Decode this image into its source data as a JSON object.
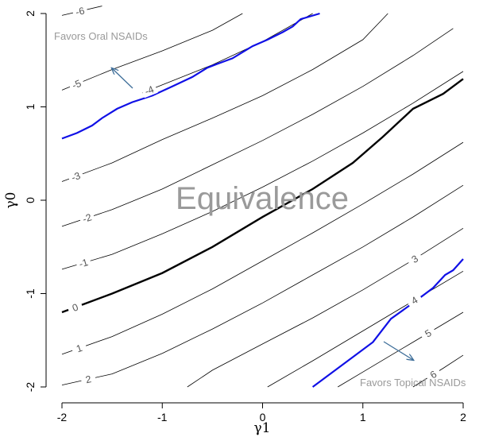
{
  "chart_data": {
    "type": "line",
    "xlabel": "γ1",
    "ylabel": "γ0",
    "xlim": [
      -2,
      2
    ],
    "ylim": [
      -2,
      2
    ],
    "x_ticks": [
      -2,
      -1,
      0,
      1,
      2
    ],
    "y_ticks": [
      -2,
      -1,
      0,
      1,
      2
    ],
    "x_tick_labels": [
      "-2",
      "-1",
      "0",
      "1",
      "2"
    ],
    "y_tick_labels": [
      "-2",
      "-1",
      "0",
      "1",
      "2"
    ],
    "grid": false,
    "annotations": {
      "center": "Equivalence",
      "top_left": "Favors Oral NSAIDs",
      "bottom_right": "Favors Topical NSAIDs"
    },
    "contours": [
      {
        "level": "-6",
        "points": [
          [
            -2,
            1.98
          ],
          [
            -1.6,
            2.08
          ]
        ]
      },
      {
        "level": "-5",
        "points": [
          [
            -2,
            1.18
          ],
          [
            -1.5,
            1.4
          ],
          [
            -1.0,
            1.6
          ],
          [
            -0.5,
            1.82
          ],
          [
            -0.2,
            2.0
          ]
        ]
      },
      {
        "level": "-4",
        "points": [
          [
            -1.2,
            1.15
          ],
          [
            -0.5,
            1.45
          ],
          [
            0.0,
            1.7
          ],
          [
            0.5,
            2.0
          ]
        ]
      },
      {
        "level": "-3",
        "points": [
          [
            -2,
            0.2
          ],
          [
            -1.5,
            0.4
          ],
          [
            -1.0,
            0.65
          ],
          [
            -0.5,
            0.88
          ],
          [
            0.0,
            1.12
          ],
          [
            0.5,
            1.4
          ],
          [
            1.0,
            1.72
          ],
          [
            1.25,
            2.0
          ]
        ]
      },
      {
        "level": "-2",
        "points": [
          [
            -2,
            -0.28
          ],
          [
            -1.5,
            -0.1
          ],
          [
            -1.0,
            0.12
          ],
          [
            -0.5,
            0.38
          ],
          [
            0.0,
            0.64
          ],
          [
            0.5,
            0.92
          ],
          [
            1.0,
            1.22
          ],
          [
            1.5,
            1.55
          ],
          [
            1.9,
            1.84
          ]
        ]
      },
      {
        "level": "-1",
        "points": [
          [
            -2,
            -0.74
          ],
          [
            -1.5,
            -0.58
          ],
          [
            -1.0,
            -0.36
          ],
          [
            -0.5,
            -0.12
          ],
          [
            0.0,
            0.14
          ],
          [
            0.5,
            0.42
          ],
          [
            1.0,
            0.72
          ],
          [
            1.5,
            1.04
          ],
          [
            2.0,
            1.38
          ]
        ]
      },
      {
        "level": "0",
        "points": [
          [
            -2,
            -1.2
          ],
          [
            -1.5,
            -1.0
          ],
          [
            -1.0,
            -0.78
          ],
          [
            -0.5,
            -0.5
          ],
          [
            0.0,
            -0.18
          ],
          [
            0.5,
            0.12
          ],
          [
            0.9,
            0.4
          ],
          [
            1.2,
            0.68
          ],
          [
            1.5,
            0.98
          ],
          [
            1.8,
            1.14
          ],
          [
            2.0,
            1.3
          ]
        ]
      },
      {
        "level": "1",
        "points": [
          [
            -2,
            -1.65
          ],
          [
            -1.5,
            -1.46
          ],
          [
            -1.0,
            -1.22
          ],
          [
            -0.5,
            -0.95
          ],
          [
            0.0,
            -0.65
          ],
          [
            0.5,
            -0.35
          ],
          [
            1.0,
            -0.04
          ],
          [
            1.5,
            0.28
          ],
          [
            2.0,
            0.62
          ]
        ]
      },
      {
        "level": "2",
        "points": [
          [
            -2,
            -1.98
          ],
          [
            -1.5,
            -1.86
          ],
          [
            -1.0,
            -1.64
          ],
          [
            -0.5,
            -1.38
          ],
          [
            0.0,
            -1.1
          ],
          [
            0.5,
            -0.8
          ],
          [
            1.0,
            -0.5
          ],
          [
            1.5,
            -0.18
          ],
          [
            2.0,
            0.16
          ]
        ]
      },
      {
        "level": "3",
        "points": [
          [
            -0.75,
            -2.0
          ],
          [
            -0.5,
            -1.82
          ],
          [
            0.0,
            -1.54
          ],
          [
            0.5,
            -1.26
          ],
          [
            1.0,
            -0.96
          ],
          [
            1.5,
            -0.64
          ],
          [
            2.0,
            -0.3
          ]
        ]
      },
      {
        "level": "4",
        "points": [
          [
            0.05,
            -2.0
          ],
          [
            0.5,
            -1.72
          ],
          [
            1.0,
            -1.4
          ],
          [
            1.5,
            -1.08
          ],
          [
            2.0,
            -0.76
          ]
        ]
      },
      {
        "level": "5",
        "points": [
          [
            0.75,
            -2.0
          ],
          [
            1.0,
            -1.84
          ],
          [
            1.5,
            -1.52
          ],
          [
            2.0,
            -1.2
          ]
        ]
      },
      {
        "level": "6",
        "points": [
          [
            1.5,
            -2.0
          ],
          [
            1.8,
            -1.8
          ],
          [
            2.0,
            -1.66
          ]
        ]
      }
    ],
    "boundary_curves": [
      {
        "points": [
          [
            -2,
            0.66
          ],
          [
            -1.85,
            0.72
          ],
          [
            -1.7,
            0.8
          ],
          [
            -1.6,
            0.88
          ],
          [
            -1.45,
            0.98
          ],
          [
            -1.3,
            1.05
          ],
          [
            -1.1,
            1.12
          ],
          [
            -0.9,
            1.22
          ],
          [
            -0.7,
            1.32
          ],
          [
            -0.55,
            1.42
          ],
          [
            -0.45,
            1.46
          ],
          [
            -0.3,
            1.52
          ],
          [
            -0.1,
            1.65
          ],
          [
            0.05,
            1.72
          ],
          [
            0.2,
            1.8
          ],
          [
            0.3,
            1.86
          ],
          [
            0.38,
            1.94
          ],
          [
            0.57,
            2.0
          ]
        ]
      },
      {
        "points": [
          [
            0.5,
            -2.0
          ],
          [
            0.75,
            -1.8
          ],
          [
            1.1,
            -1.52
          ],
          [
            1.28,
            -1.27
          ],
          [
            1.5,
            -1.1
          ],
          [
            1.7,
            -0.94
          ],
          [
            1.82,
            -0.8
          ],
          [
            1.9,
            -0.75
          ],
          [
            2.0,
            -0.63
          ]
        ]
      }
    ]
  }
}
